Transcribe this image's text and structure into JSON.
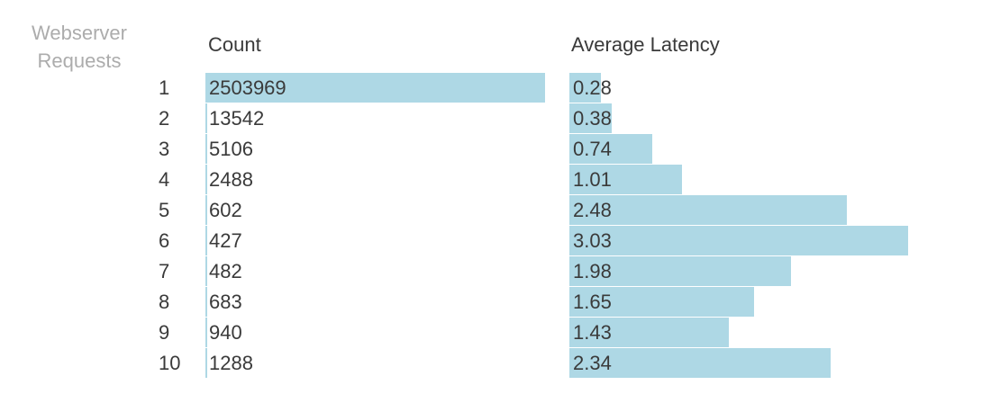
{
  "chart": {
    "dimension_label": "Webserver Requests",
    "count_header": "Count",
    "latency_header": "Average Latency",
    "bar_color": "#aed8e5"
  },
  "chart_data": {
    "type": "bar",
    "orientation": "horizontal",
    "title": "Webserver Requests",
    "categories": [
      "1",
      "2",
      "3",
      "4",
      "5",
      "6",
      "7",
      "8",
      "9",
      "10"
    ],
    "series": [
      {
        "name": "Count",
        "values": [
          2503969,
          13542,
          5106,
          2488,
          602,
          427,
          482,
          683,
          940,
          1288
        ],
        "axis_max": 2503969,
        "format": "integer"
      },
      {
        "name": "Average Latency",
        "values": [
          0.28,
          0.38,
          0.74,
          1.01,
          2.48,
          3.03,
          1.98,
          1.65,
          1.43,
          2.34
        ],
        "axis_max": 3.03,
        "format": "2dp"
      }
    ],
    "legend": false,
    "grid": false,
    "value_labels": "inside-start"
  }
}
